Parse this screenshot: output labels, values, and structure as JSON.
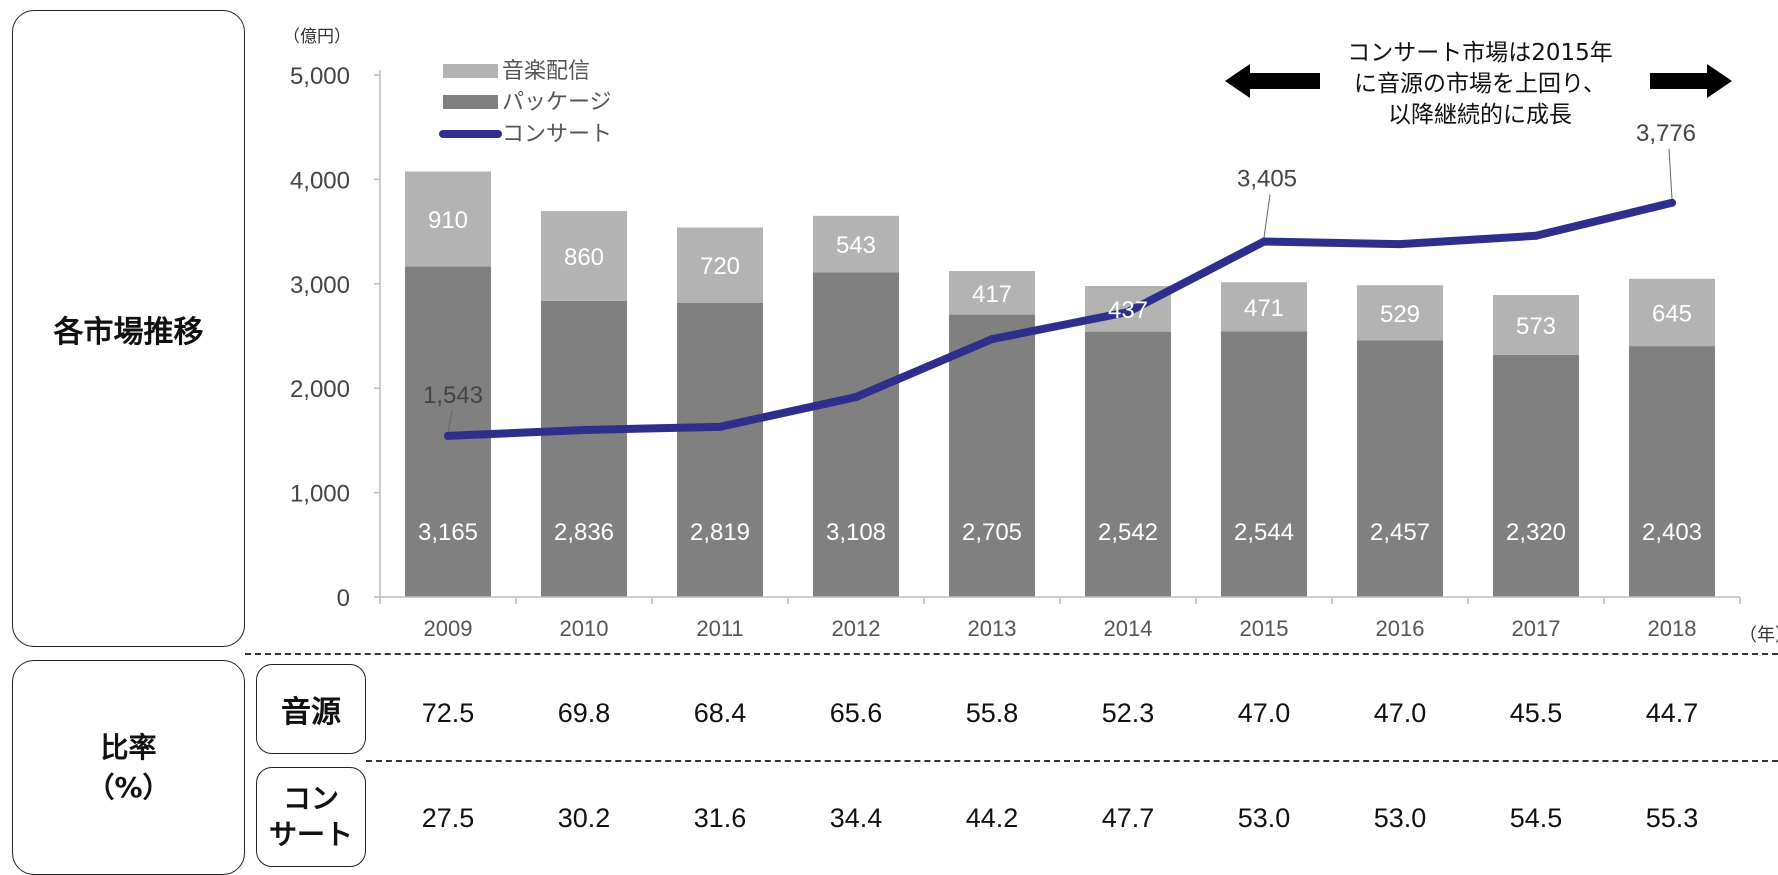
{
  "left_labels": {
    "chart_section": "各市場推移",
    "ratio_section_line1": "比率",
    "ratio_section_line2": "（%）"
  },
  "ratio_table": {
    "row1_label": "音源",
    "row2_label_line1": "コン",
    "row2_label_line2": "サート",
    "row1_values": [
      "72.5",
      "69.8",
      "68.4",
      "65.6",
      "55.8",
      "52.3",
      "47.0",
      "47.0",
      "45.5",
      "44.7"
    ],
    "row2_values": [
      "27.5",
      "30.2",
      "31.6",
      "34.4",
      "44.2",
      "47.7",
      "53.0",
      "53.0",
      "54.5",
      "55.3"
    ]
  },
  "annotation": {
    "line1": "コンサート市場は2015年",
    "line2": "に音源の市場を上回り、",
    "line3": "以降継続的に成長"
  },
  "chart_data": {
    "type": "bar",
    "stacked": true,
    "unit_label": "（億円）",
    "x_unit_label": "（年）",
    "categories": [
      "2009",
      "2010",
      "2011",
      "2012",
      "2013",
      "2014",
      "2015",
      "2016",
      "2017",
      "2018"
    ],
    "ylim": [
      0,
      5000
    ],
    "yticks": [
      0,
      1000,
      2000,
      3000,
      4000,
      5000
    ],
    "ytick_labels": [
      "0",
      "1,000",
      "2,000",
      "3,000",
      "4,000",
      "5,000"
    ],
    "legend_position": "top-left",
    "series": [
      {
        "name": "パッケージ",
        "type": "bar",
        "color": "#808080",
        "values": [
          3165,
          2836,
          2819,
          3108,
          2705,
          2542,
          2544,
          2457,
          2320,
          2403
        ],
        "labels": [
          "3,165",
          "2,836",
          "2,819",
          "3,108",
          "2,705",
          "2,542",
          "2,544",
          "2,457",
          "2,320",
          "2,403"
        ]
      },
      {
        "name": "音楽配信",
        "type": "bar",
        "color": "#b3b3b3",
        "values": [
          910,
          860,
          720,
          543,
          417,
          437,
          471,
          529,
          573,
          645
        ],
        "labels": [
          "910",
          "860",
          "720",
          "543",
          "417",
          "437",
          "471",
          "529",
          "573",
          "645"
        ]
      },
      {
        "name": "コンサート",
        "type": "line",
        "color": "#2e2e8c",
        "values": [
          1543,
          1600,
          1630,
          1915,
          2470,
          2730,
          3405,
          3380,
          3460,
          3776
        ],
        "point_labels": [
          "1,543",
          "",
          "",
          "",
          "",
          "",
          "3,405",
          "",
          "",
          "3,776"
        ]
      }
    ]
  }
}
